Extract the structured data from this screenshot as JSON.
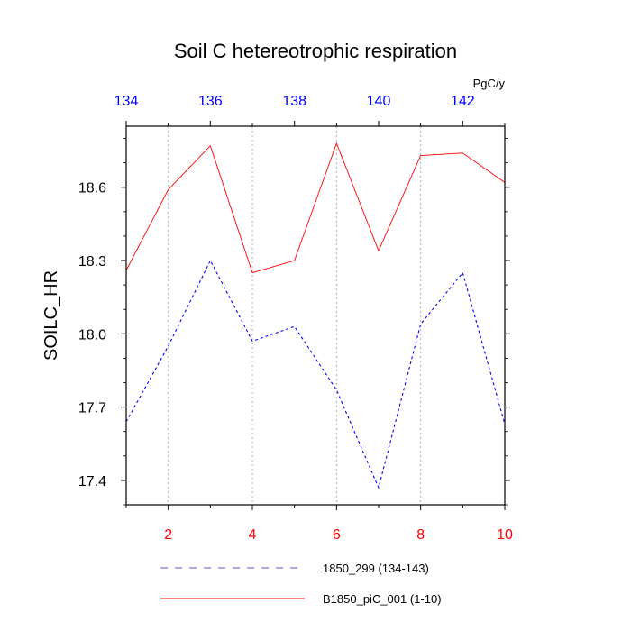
{
  "chart_data": {
    "type": "line",
    "title": "Soil C hetereotrophic respiration",
    "units": "PgC/y",
    "ylabel": "SOILC_HR",
    "ylim": [
      17.3,
      18.85
    ],
    "yticks": [
      17.4,
      17.7,
      18.0,
      18.3,
      18.6
    ],
    "ytick_labels": [
      "17.4",
      "17.7",
      "18.0",
      "18.3",
      "18.6"
    ],
    "bottom_axis": {
      "range": [
        1,
        10
      ],
      "ticks": [
        2,
        4,
        6,
        8,
        10
      ],
      "tick_labels": [
        "2",
        "4",
        "6",
        "8",
        "10"
      ],
      "color": "#ff0000"
    },
    "top_axis": {
      "range": [
        134,
        143
      ],
      "ticks": [
        134,
        136,
        138,
        140,
        142
      ],
      "tick_labels": [
        "134",
        "136",
        "138",
        "140",
        "142"
      ],
      "color": "#0000ff"
    },
    "gridlines_at": [
      2,
      4,
      6,
      8
    ],
    "series": [
      {
        "name": "1850_299 (134-143)",
        "axis": "top",
        "color": "#0000ff",
        "dash": "dashed",
        "x": [
          134,
          135,
          136,
          137,
          138,
          139,
          140,
          141,
          142,
          143
        ],
        "values": [
          17.64,
          17.95,
          18.3,
          17.97,
          18.03,
          17.77,
          17.37,
          18.04,
          18.25,
          17.63
        ]
      },
      {
        "name": "B1850_piC_001 (1-10)",
        "axis": "bottom",
        "color": "#ff0000",
        "dash": "solid",
        "x": [
          1,
          2,
          3,
          4,
          5,
          6,
          7,
          8,
          9,
          10
        ],
        "values": [
          18.26,
          18.59,
          18.77,
          18.25,
          18.3,
          18.78,
          18.34,
          18.73,
          18.74,
          18.62
        ]
      }
    ]
  }
}
